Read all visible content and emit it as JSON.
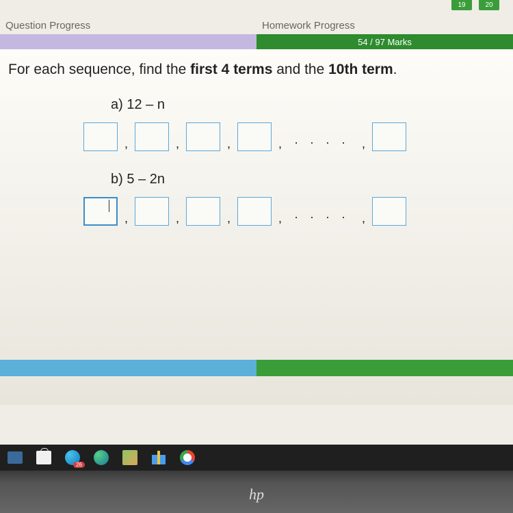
{
  "top_tabs": [
    "19",
    "20"
  ],
  "progress": {
    "question_label": "Question Progress",
    "homework_label": "Homework Progress",
    "homework_text": "54 / 97 Marks",
    "question_bar_color": "#c4b8e0",
    "homework_bar_color": "#2e8b2e"
  },
  "question": {
    "prefix": "For each sequence, find the ",
    "bold1": "first 4 terms",
    "mid": " and the ",
    "bold2": "10th term",
    "suffix": "."
  },
  "parts": {
    "a": {
      "label": "a)  12 – n"
    },
    "b": {
      "label": "b)  5 – 2n"
    }
  },
  "separators": {
    "comma": ",",
    "dots": "· · · ·"
  },
  "taskbar": {
    "badge_count": "26"
  },
  "logo": "hp",
  "colors": {
    "box_border": "#5aa8d8",
    "box_active": "#3a8cc8",
    "content_bg": "#fdfcf8"
  }
}
